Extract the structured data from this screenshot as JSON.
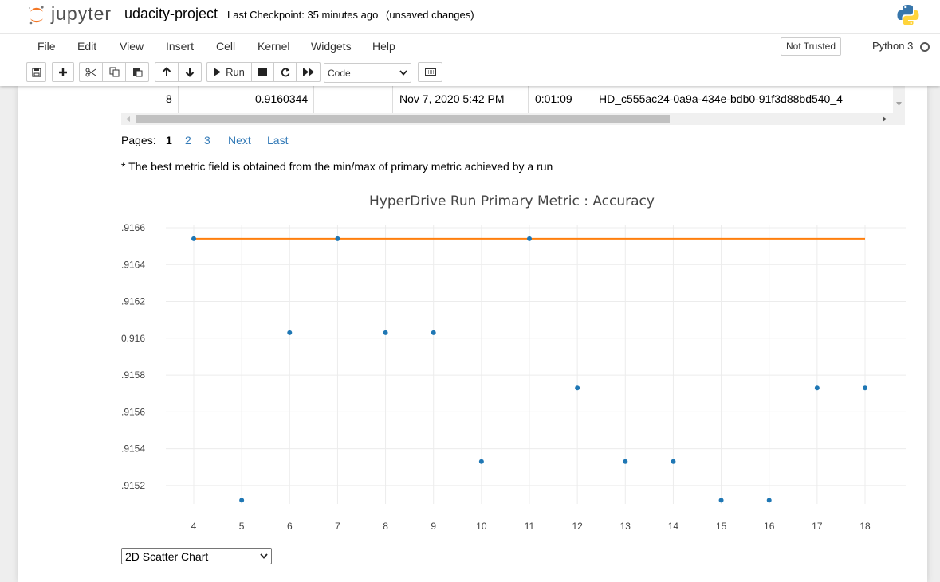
{
  "header": {
    "logo_text": "jupyter",
    "notebook_name": "udacity-project",
    "checkpoint": "Last Checkpoint: 35 minutes ago",
    "unsaved": "(unsaved changes)"
  },
  "menu": {
    "items": [
      "File",
      "Edit",
      "View",
      "Insert",
      "Cell",
      "Kernel",
      "Widgets",
      "Help"
    ],
    "trust_status": "Not Trusted",
    "kernel_name": "Python 3"
  },
  "toolbar": {
    "run_label": "Run",
    "cell_type": "Code"
  },
  "run_table": {
    "row": {
      "iteration": "8",
      "metric": "0.9160344",
      "empty": "",
      "started": "Nov 7, 2020 5:42 PM",
      "duration": "0:01:09",
      "run_id": "HD_c555ac24-0a9a-434e-bdb0-91f3d88bd540_4"
    }
  },
  "pager": {
    "label": "Pages:",
    "current": "1",
    "pages": [
      "2",
      "3"
    ],
    "next": "Next",
    "last": "Last"
  },
  "note": "* The best metric field is obtained from the min/max of primary metric achieved by a run",
  "chart_data": {
    "type": "scatter",
    "title": "HyperDrive Run Primary Metric : Accuracy",
    "xlabel": "",
    "ylabel": "",
    "x_ticks": [
      "4",
      "5",
      "6",
      "7",
      "8",
      "9",
      "10",
      "11",
      "12",
      "13",
      "14",
      "15",
      "16",
      "17",
      "18"
    ],
    "y_ticks": [
      ".9166",
      ".9164",
      ".9162",
      "0.916",
      ".9158",
      ".9156",
      ".9154",
      ".9152"
    ],
    "y_tick_values": [
      0.9166,
      0.9164,
      0.9162,
      0.916,
      0.9158,
      0.9156,
      0.9154,
      0.9152
    ],
    "ylim": [
      0.9151,
      0.9166
    ],
    "xlim": [
      4,
      18
    ],
    "grid": true,
    "series": [
      {
        "type": "scatter",
        "color": "#1f77b4",
        "x": [
          4,
          5,
          6,
          7,
          8,
          9,
          10,
          11,
          12,
          13,
          14,
          15,
          16,
          17,
          18
        ],
        "y": [
          0.91654,
          0.91512,
          0.91603,
          0.91654,
          0.91603,
          0.91603,
          0.91533,
          0.91654,
          0.91573,
          0.91533,
          0.91533,
          0.91512,
          0.91512,
          0.91573,
          0.91573
        ]
      },
      {
        "type": "line",
        "color": "#ff7f0e",
        "x": [
          4,
          18
        ],
        "y": [
          0.91654,
          0.91654
        ]
      }
    ]
  },
  "chart_type_select": "2D Scatter Chart"
}
